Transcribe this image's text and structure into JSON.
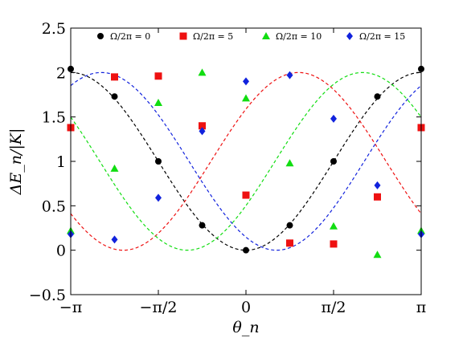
{
  "chart_data": {
    "type": "scatter",
    "title": "",
    "xlabel": "θ_n",
    "ylabel": "ΔE_n/|K|",
    "xlim": [
      -3.14159,
      3.14159
    ],
    "ylim": [
      -0.5,
      2.5
    ],
    "grid": false,
    "legend_position": "top",
    "x_ticks": [
      {
        "value": -3.14159,
        "label": "−π"
      },
      {
        "value": -1.5708,
        "label": "−π/2"
      },
      {
        "value": 0,
        "label": "0"
      },
      {
        "value": 1.5708,
        "label": "π/2"
      },
      {
        "value": 3.14159,
        "label": "π"
      }
    ],
    "y_ticks": [
      {
        "value": -0.5,
        "label": "−0.5"
      },
      {
        "value": 0,
        "label": "0"
      },
      {
        "value": 0.5,
        "label": "0.5"
      },
      {
        "value": 1,
        "label": "1"
      },
      {
        "value": 1.5,
        "label": "1.5"
      },
      {
        "value": 2,
        "label": "2"
      },
      {
        "value": 2.5,
        "label": "2.5"
      }
    ],
    "series": [
      {
        "name": "Ω/2π = 0",
        "color": "#000000",
        "marker": "circle",
        "fit_phase": 0,
        "x": [
          -3.14159,
          -2.35619,
          -1.5708,
          -0.7854,
          0,
          0.7854,
          1.5708,
          2.35619,
          3.14159
        ],
        "y": [
          2.04,
          1.73,
          1.0,
          0.28,
          0.0,
          0.28,
          1.0,
          1.73,
          2.04
        ]
      },
      {
        "name": "Ω/2π = 5",
        "color": "#ee1111",
        "marker": "square",
        "fit_phase": -2.2,
        "x": [
          -3.14159,
          -2.35619,
          -1.5708,
          -0.7854,
          0,
          0.7854,
          1.5708,
          2.35619,
          3.14159
        ],
        "y": [
          1.38,
          1.95,
          1.96,
          1.4,
          0.62,
          0.08,
          0.07,
          0.6,
          1.38
        ]
      },
      {
        "name": "Ω/2π = 10",
        "color": "#11dd11",
        "marker": "triangle",
        "fit_phase": -1.05,
        "x": [
          -3.14159,
          -2.35619,
          -1.5708,
          -0.7854,
          0,
          0.7854,
          1.5708,
          2.35619,
          3.14159
        ],
        "y": [
          0.22,
          0.92,
          1.66,
          2.0,
          1.71,
          0.98,
          0.27,
          -0.05,
          0.22
        ]
      },
      {
        "name": "Ω/2π = 15",
        "color": "#1122dd",
        "marker": "diamond",
        "fit_phase": 0.55,
        "x": [
          -3.14159,
          -2.35619,
          -1.5708,
          -0.7854,
          0,
          0.7854,
          1.5708,
          2.35619,
          3.14159
        ],
        "y": [
          0.18,
          0.12,
          0.59,
          1.34,
          1.9,
          1.97,
          1.48,
          0.73,
          0.18
        ]
      }
    ]
  }
}
